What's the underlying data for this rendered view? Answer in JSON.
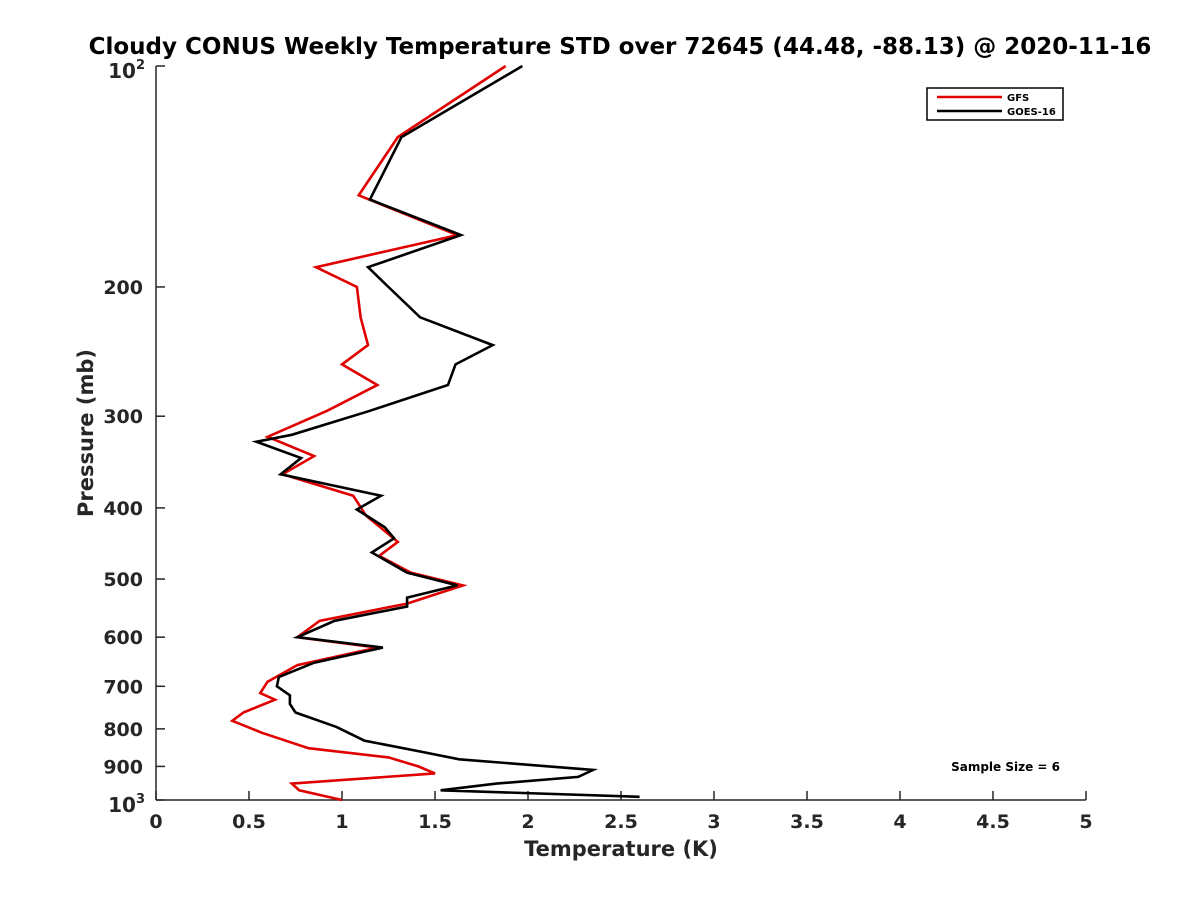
{
  "chart_data": {
    "type": "line",
    "title": "Cloudy CONUS Weekly Temperature STD over 72645 (44.48, -88.13) @ 2020-11-16",
    "xlabel": "Temperature (K)",
    "ylabel": "Pressure (mb)",
    "xlim": [
      0,
      5
    ],
    "ylim": [
      100,
      1000
    ],
    "yscale": "log",
    "yreversed": true,
    "xticks": [
      0,
      0.5,
      1,
      1.5,
      2,
      2.5,
      3,
      3.5,
      4,
      4.5,
      5
    ],
    "xtick_labels": [
      "0",
      "0.5",
      "1",
      "1.5",
      "2",
      "2.5",
      "3",
      "3.5",
      "4",
      "4.5",
      "5"
    ],
    "yticks": [
      200,
      300,
      400,
      500,
      600,
      700,
      800,
      900
    ],
    "ytick_labels": [
      "200",
      "300",
      "400",
      "500",
      "600",
      "700",
      "800",
      "900"
    ],
    "ytick_top": {
      "base": "10",
      "exp": "2"
    },
    "ytick_bottom": {
      "base": "10",
      "exp": "3"
    },
    "grid": false,
    "legend_position": "top-right",
    "annotation": "Sample Size = 6",
    "series": [
      {
        "name": "GFS",
        "color": "#e00000",
        "points": [
          [
            1.88,
            100
          ],
          [
            1.3,
            125
          ],
          [
            1.09,
            150
          ],
          [
            1.62,
            170
          ],
          [
            0.86,
            188
          ],
          [
            1.08,
            200
          ],
          [
            1.1,
            220
          ],
          [
            1.14,
            240
          ],
          [
            1.0,
            255
          ],
          [
            1.19,
            272
          ],
          [
            0.92,
            295
          ],
          [
            0.6,
            320
          ],
          [
            0.85,
            340
          ],
          [
            0.68,
            360
          ],
          [
            1.06,
            385
          ],
          [
            1.13,
            410
          ],
          [
            1.23,
            430
          ],
          [
            1.3,
            445
          ],
          [
            1.2,
            465
          ],
          [
            1.37,
            490
          ],
          [
            1.65,
            510
          ],
          [
            1.35,
            540
          ],
          [
            0.88,
            570
          ],
          [
            0.76,
            600
          ],
          [
            1.19,
            620
          ],
          [
            0.76,
            655
          ],
          [
            0.6,
            690
          ],
          [
            0.56,
            715
          ],
          [
            0.64,
            730
          ],
          [
            0.47,
            760
          ],
          [
            0.41,
            780
          ],
          [
            0.57,
            810
          ],
          [
            0.82,
            850
          ],
          [
            1.25,
            875
          ],
          [
            1.41,
            900
          ],
          [
            1.5,
            920
          ],
          [
            0.73,
            950
          ],
          [
            0.77,
            970
          ],
          [
            1.0,
            1000
          ]
        ]
      },
      {
        "name": "GOES-16",
        "color": "#000000",
        "points": [
          [
            1.97,
            100
          ],
          [
            1.32,
            125
          ],
          [
            1.15,
            152
          ],
          [
            1.64,
            170
          ],
          [
            1.14,
            188
          ],
          [
            1.25,
            200
          ],
          [
            1.42,
            220
          ],
          [
            1.81,
            240
          ],
          [
            1.61,
            255
          ],
          [
            1.57,
            272
          ],
          [
            1.15,
            295
          ],
          [
            0.73,
            318
          ],
          [
            0.54,
            325
          ],
          [
            0.78,
            342
          ],
          [
            0.67,
            360
          ],
          [
            1.21,
            385
          ],
          [
            1.08,
            402
          ],
          [
            1.23,
            425
          ],
          [
            1.28,
            440
          ],
          [
            1.16,
            460
          ],
          [
            1.35,
            490
          ],
          [
            1.62,
            510
          ],
          [
            1.35,
            530
          ],
          [
            1.35,
            545
          ],
          [
            0.96,
            570
          ],
          [
            0.76,
            600
          ],
          [
            1.22,
            620
          ],
          [
            0.85,
            650
          ],
          [
            0.66,
            680
          ],
          [
            0.65,
            700
          ],
          [
            0.72,
            720
          ],
          [
            0.72,
            740
          ],
          [
            0.75,
            760
          ],
          [
            0.97,
            795
          ],
          [
            1.12,
            830
          ],
          [
            1.43,
            860
          ],
          [
            1.63,
            880
          ],
          [
            2.35,
            910
          ],
          [
            2.27,
            930
          ],
          [
            1.83,
            950
          ],
          [
            1.53,
            970
          ],
          [
            2.6,
            990
          ]
        ]
      }
    ]
  }
}
